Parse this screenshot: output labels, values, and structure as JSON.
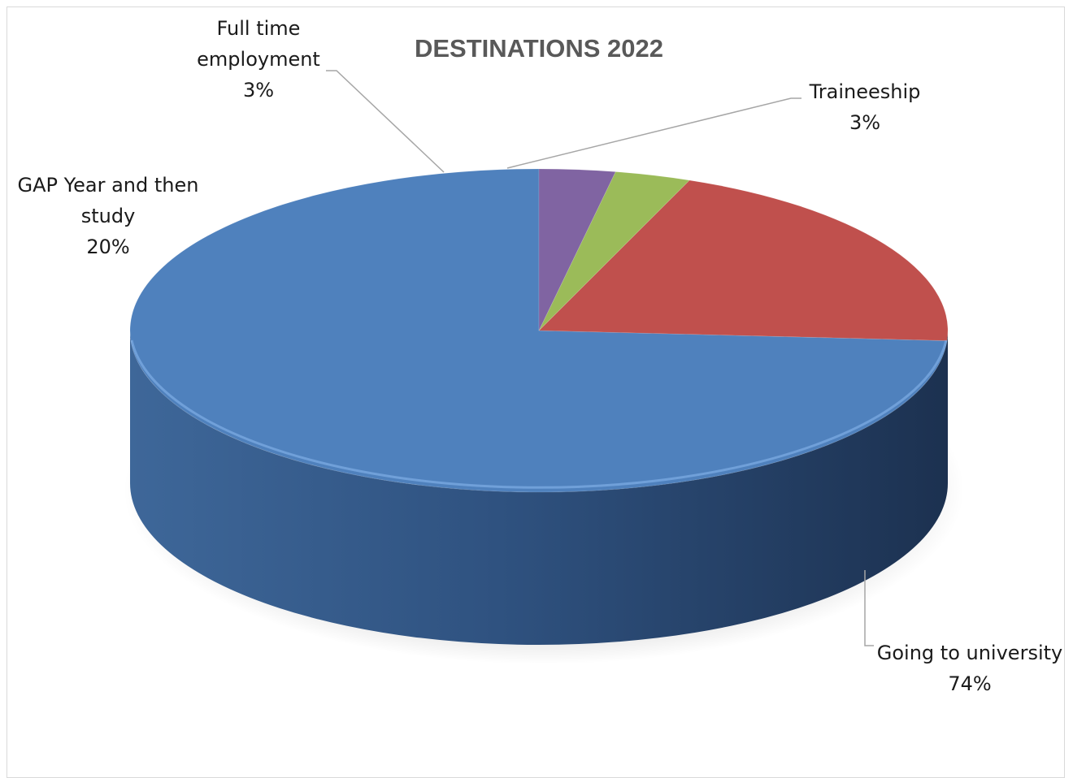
{
  "chart_data": {
    "type": "pie",
    "title": "DESTINATIONS 2022",
    "style": "3d",
    "start_angle_degrees": 0,
    "slices": [
      {
        "label": "Going to university",
        "value": 74,
        "value_text": "74%",
        "color": "#4f81bd"
      },
      {
        "label": "GAP Year and then study",
        "value": 20,
        "value_text": "20%",
        "color": "#c0504d"
      },
      {
        "label": "Full time employment",
        "value": 3,
        "value_text": "3%",
        "color": "#9bbb59"
      },
      {
        "label": "Traineeship",
        "value": 3,
        "value_text": "3%",
        "color": "#8064a2"
      }
    ],
    "legend": "none"
  }
}
